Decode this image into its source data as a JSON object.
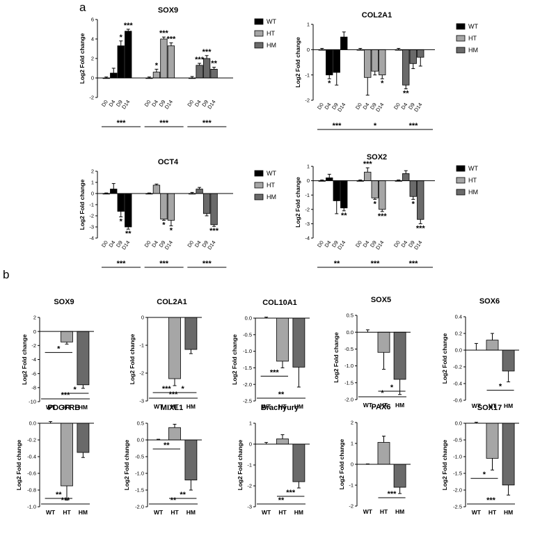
{
  "labels": {
    "panel_a": "a",
    "panel_b": "b"
  },
  "colors": {
    "WT": "#000000",
    "HT": "#a6a6a6",
    "HM": "#6a6a6a"
  },
  "chart_data": [
    {
      "type": "bar",
      "panel": "a",
      "title": "SOX9",
      "ylabel": "Log2 Fold change",
      "ylim": [
        -2,
        6
      ],
      "yticks": [
        -2,
        0,
        2,
        4,
        6
      ],
      "groups": [
        "WT",
        "HT",
        "HM"
      ],
      "timepoints": [
        "D0",
        "D4",
        "D9",
        "D14"
      ],
      "series": [
        {
          "name": "WT",
          "values": [
            0,
            0.5,
            3.3,
            4.8
          ],
          "errors": [
            0.1,
            0.5,
            0.5,
            0.2
          ],
          "stars": [
            "",
            "",
            "*",
            "***"
          ]
        },
        {
          "name": "HT",
          "values": [
            0,
            0.6,
            4.0,
            3.3
          ],
          "errors": [
            0.1,
            0.3,
            0.2,
            0.3
          ],
          "stars": [
            "",
            "*",
            "***",
            "***"
          ]
        },
        {
          "name": "HM",
          "values": [
            0,
            1.3,
            2.0,
            0.9
          ],
          "errors": [
            0.15,
            0.2,
            0.3,
            0.2
          ],
          "stars": [
            "",
            "***",
            "***",
            "**"
          ]
        }
      ],
      "group_sig": [
        "***",
        "***",
        "***"
      ]
    },
    {
      "type": "bar",
      "panel": "a",
      "title": "COL2A1",
      "ylabel": "Log2 Fold change",
      "ylim": [
        -2,
        1
      ],
      "yticks": [
        -2,
        -1,
        0,
        1
      ],
      "groups": [
        "WT",
        "HT",
        "HM"
      ],
      "timepoints": [
        "D0",
        "D4",
        "D9",
        "D14"
      ],
      "series": [
        {
          "name": "WT",
          "values": [
            0,
            -1.0,
            -0.9,
            0.5
          ],
          "errors": [
            0.05,
            0.15,
            0.5,
            0.2
          ],
          "stars": [
            "",
            "*",
            "",
            ""
          ]
        },
        {
          "name": "HT",
          "values": [
            0,
            -1.1,
            -0.85,
            -1.0
          ],
          "errors": [
            0.05,
            0.7,
            0.15,
            0.15
          ],
          "stars": [
            "",
            "",
            "",
            "*"
          ]
        },
        {
          "name": "HM",
          "values": [
            0,
            -1.4,
            -0.55,
            -0.3
          ],
          "errors": [
            0.05,
            0.15,
            0.2,
            0.35
          ],
          "stars": [
            "",
            "**",
            "",
            ""
          ]
        }
      ],
      "group_sig": [
        "***",
        "*",
        "***"
      ]
    },
    {
      "type": "bar",
      "panel": "a",
      "title": "OCT4",
      "ylabel": "Log2 Fold change",
      "ylim": [
        -4,
        2
      ],
      "yticks": [
        -4,
        -3,
        -2,
        -1,
        0,
        1,
        2
      ],
      "groups": [
        "WT",
        "HT",
        "HM"
      ],
      "timepoints": [
        "D0",
        "D4",
        "D9",
        "D14"
      ],
      "series": [
        {
          "name": "WT",
          "values": [
            0,
            0.4,
            -1.6,
            -3.0
          ],
          "errors": [
            0.05,
            0.5,
            0.5,
            0.2
          ],
          "stars": [
            "",
            "",
            "*",
            "**"
          ]
        },
        {
          "name": "HT",
          "values": [
            0,
            0.75,
            -2.3,
            -2.4
          ],
          "errors": [
            0.05,
            0.1,
            0.1,
            0.5
          ],
          "stars": [
            "",
            "",
            "*",
            "*"
          ]
        },
        {
          "name": "HM",
          "values": [
            0,
            0.4,
            -1.8,
            -2.8
          ],
          "errors": [
            0.1,
            0.15,
            0.2,
            0.15
          ],
          "stars": [
            "",
            "",
            "",
            "***"
          ]
        }
      ],
      "group_sig": [
        "***",
        "***",
        "***"
      ]
    },
    {
      "type": "bar",
      "panel": "a",
      "title": "SOX2",
      "ylabel": "Log2 Fold change",
      "ylim": [
        -4,
        1
      ],
      "yticks": [
        -4,
        -3,
        -2,
        -1,
        0,
        1
      ],
      "groups": [
        "WT",
        "HT",
        "HM"
      ],
      "timepoints": [
        "D0",
        "D4",
        "D9",
        "D14"
      ],
      "series": [
        {
          "name": "WT",
          "values": [
            0,
            0.2,
            -1.4,
            -1.9
          ],
          "errors": [
            0.05,
            0.25,
            0.9,
            0.2
          ],
          "stars": [
            "",
            "",
            "",
            "**"
          ]
        },
        {
          "name": "HT",
          "values": [
            0,
            0.6,
            -1.2,
            -2.0
          ],
          "errors": [
            0.05,
            0.3,
            0.1,
            0.15
          ],
          "stars": [
            "",
            "***",
            "*",
            "***"
          ]
        },
        {
          "name": "HM",
          "values": [
            0,
            0.5,
            -1.1,
            -2.7
          ],
          "errors": [
            0.05,
            0.2,
            0.2,
            0.3
          ],
          "stars": [
            "",
            "",
            "*",
            "***"
          ]
        }
      ],
      "group_sig": [
        "**",
        "***",
        "***"
      ]
    },
    {
      "type": "bar",
      "panel": "b",
      "title": "SOX9",
      "ylabel": "Log2 Fold change",
      "ylim": [
        -10,
        2
      ],
      "yticks": [
        -10,
        -8,
        -6,
        -4,
        -2,
        0,
        2
      ],
      "categories": [
        "WT",
        "HT",
        "HM"
      ],
      "values": [
        0,
        -1.5,
        -7.6
      ],
      "errors": [
        0,
        0.3,
        0.5
      ],
      "sig": [
        {
          "pair": [
            0,
            1
          ],
          "label": "*"
        },
        {
          "pair": [
            1,
            2
          ],
          "label": "*"
        },
        {
          "pair": [
            0,
            2
          ],
          "label": "***"
        }
      ]
    },
    {
      "type": "bar",
      "panel": "b",
      "title": "COL2A1",
      "ylabel": "Log2 Fold change",
      "ylim": [
        -3,
        0
      ],
      "yticks": [
        -3,
        -2,
        -1,
        0
      ],
      "categories": [
        "WT",
        "HT",
        "HM"
      ],
      "values": [
        0,
        -2.2,
        -1.15
      ],
      "errors": [
        0,
        0.25,
        0.15
      ],
      "sig": [
        {
          "pair": [
            0,
            1
          ],
          "label": "***"
        },
        {
          "pair": [
            1,
            2
          ],
          "label": "*"
        },
        {
          "pair": [
            0,
            2
          ],
          "label": "***"
        }
      ]
    },
    {
      "type": "bar",
      "panel": "b",
      "title": "COL10A1",
      "ylabel": "Log2 Fold change",
      "ylim": [
        -2.5,
        0
      ],
      "yticks": [
        -2.5,
        -2.0,
        -1.5,
        -1.0,
        -0.5,
        0.0
      ],
      "categories": [
        "WT",
        "HT",
        "HM"
      ],
      "values": [
        0,
        -1.3,
        -1.48
      ],
      "errors": [
        0.03,
        0.2,
        0.6
      ],
      "sig": [
        {
          "pair": [
            0,
            1
          ],
          "label": "***"
        },
        {
          "pair": [
            0,
            2
          ],
          "label": "**"
        }
      ]
    },
    {
      "type": "bar",
      "panel": "b",
      "title": "SOX5",
      "ylabel": "Log2 Fold change",
      "ylim": [
        -2.0,
        0.5
      ],
      "yticks": [
        -2.0,
        -1.5,
        -1.0,
        -0.5,
        0.0,
        0.5
      ],
      "categories": [
        "WT",
        "HT",
        "HM"
      ],
      "values": [
        0,
        -0.6,
        -1.4
      ],
      "errors": [
        0.07,
        0.5,
        0.45
      ],
      "sig": [
        {
          "pair": [
            1,
            2
          ],
          "label": "*"
        },
        {
          "pair": [
            0,
            2
          ],
          "label": "*"
        }
      ]
    },
    {
      "type": "bar",
      "panel": "b",
      "title": "SOX6",
      "ylabel": "Log2 Fold change",
      "ylim": [
        -0.6,
        0.4
      ],
      "yticks": [
        -0.6,
        -0.4,
        -0.2,
        0.0,
        0.2,
        0.4
      ],
      "categories": [
        "WT",
        "HT",
        "HM"
      ],
      "values": [
        0,
        0.12,
        -0.25
      ],
      "errors": [
        0.08,
        0.08,
        0.13
      ],
      "sig": [
        {
          "pair": [
            1,
            2
          ],
          "label": "*"
        }
      ]
    },
    {
      "type": "bar",
      "panel": "b",
      "title": "PDGFRB",
      "ylabel": "Log2 Fold change",
      "ylim": [
        -1.0,
        0.0
      ],
      "yticks": [
        -1.0,
        -0.8,
        -0.6,
        -0.4,
        -0.2,
        0.0
      ],
      "categories": [
        "WT",
        "HT",
        "HM"
      ],
      "values": [
        0,
        -0.75,
        -0.35
      ],
      "errors": [
        0.02,
        0.17,
        0.06
      ],
      "sig": [
        {
          "pair": [
            0,
            2
          ],
          "label": "***"
        },
        {
          "pair": [
            0,
            1
          ],
          "label": "**"
        }
      ]
    },
    {
      "type": "bar",
      "panel": "b",
      "title": "MIXL1",
      "ylabel": "Log2 Fold change",
      "ylim": [
        -2.0,
        0.5
      ],
      "yticks": [
        -2.0,
        -1.5,
        -1.0,
        -0.5,
        0.0,
        0.5
      ],
      "categories": [
        "WT",
        "HT",
        "HM"
      ],
      "values": [
        0,
        0.37,
        -1.2
      ],
      "errors": [
        0.02,
        0.1,
        0.3
      ],
      "sig": [
        {
          "pair": [
            0,
            1
          ],
          "label": "**"
        },
        {
          "pair": [
            1,
            2
          ],
          "label": "**"
        },
        {
          "pair": [
            0,
            2
          ],
          "label": "**"
        }
      ]
    },
    {
      "type": "bar",
      "panel": "b",
      "title": "Brachyury",
      "ylabel": "Log2 Fold change",
      "ylim": [
        -3,
        1
      ],
      "yticks": [
        -3,
        -2,
        -1,
        0,
        1
      ],
      "categories": [
        "WT",
        "HT",
        "HM"
      ],
      "values": [
        0,
        0.25,
        -1.8
      ],
      "errors": [
        0.08,
        0.2,
        0.3
      ],
      "sig": [
        {
          "pair": [
            1,
            2
          ],
          "label": "***"
        },
        {
          "pair": [
            0,
            2
          ],
          "label": "**"
        }
      ]
    },
    {
      "type": "bar",
      "panel": "b",
      "title": "PAX6",
      "ylabel": "Log2 Fold change",
      "ylim": [
        -2,
        2
      ],
      "yticks": [
        -2,
        -1,
        0,
        1,
        2
      ],
      "categories": [
        "WT",
        "HT",
        "HM"
      ],
      "values": [
        0,
        1.05,
        -1.1
      ],
      "errors": [
        0.02,
        0.3,
        0.3
      ],
      "sig": [
        {
          "pair": [
            1,
            2
          ],
          "label": "***"
        }
      ]
    },
    {
      "type": "bar",
      "panel": "b",
      "title": "SOX17",
      "ylabel": "Log2 Fold change",
      "ylim": [
        -2.5,
        0.0
      ],
      "yticks": [
        -2.5,
        -2.0,
        -1.5,
        -1.0,
        -0.5,
        0.0
      ],
      "categories": [
        "WT",
        "HT",
        "HM"
      ],
      "values": [
        0,
        -1.05,
        -1.85
      ],
      "errors": [
        0.03,
        0.35,
        0.3
      ],
      "sig": [
        {
          "pair": [
            0,
            1
          ],
          "label": "*"
        },
        {
          "pair": [
            0,
            2
          ],
          "label": "***"
        }
      ]
    }
  ]
}
